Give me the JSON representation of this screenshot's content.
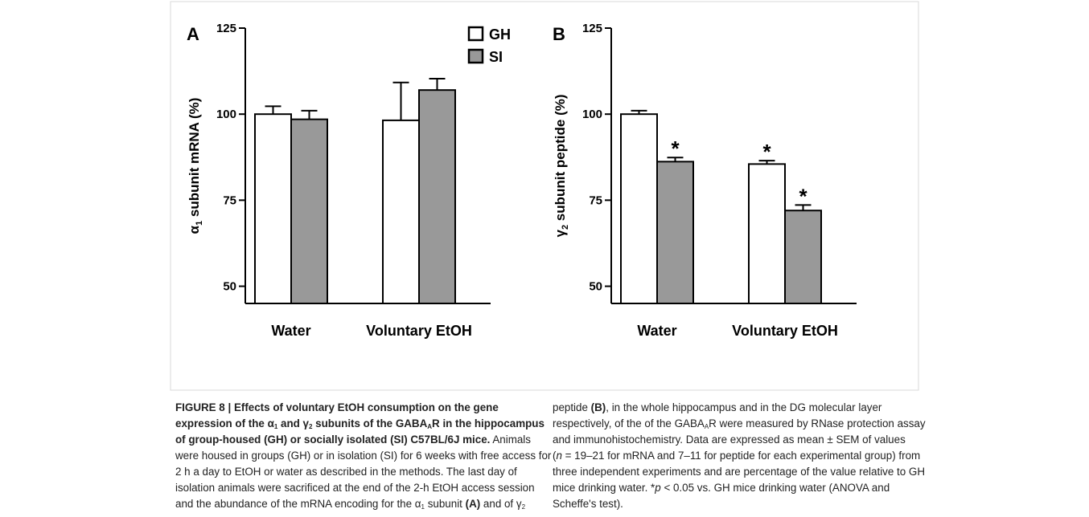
{
  "chart_data": [
    {
      "type": "bar",
      "panel_label": "A",
      "ylabel": [
        "α",
        "1",
        " subunit mRNA (%)"
      ],
      "categories": [
        "Water",
        "Voluntary EtOH"
      ],
      "series": [
        {
          "name": "GH",
          "color": "#ffffff",
          "values": [
            100,
            98.2
          ],
          "errors": [
            2.3,
            11
          ]
        },
        {
          "name": "SI",
          "color": "#999999",
          "values": [
            98.5,
            107
          ],
          "errors": [
            2.5,
            3.3
          ]
        }
      ],
      "ylim": [
        45,
        125
      ],
      "yticks": [
        50,
        75,
        100,
        125
      ],
      "legend": true
    },
    {
      "type": "bar",
      "panel_label": "B",
      "ylabel": [
        "γ",
        "2",
        " subunit peptide (%)"
      ],
      "categories": [
        "Water",
        "Voluntary EtOH"
      ],
      "series": [
        {
          "name": "GH",
          "color": "#ffffff",
          "values": [
            100,
            85.5
          ],
          "errors": [
            1,
            1
          ],
          "markers": [
            null,
            "*"
          ]
        },
        {
          "name": "SI",
          "color": "#999999",
          "values": [
            86.2,
            72
          ],
          "errors": [
            1.2,
            1.6
          ],
          "markers": [
            "*",
            "*"
          ]
        }
      ],
      "ylim": [
        45,
        125
      ],
      "yticks": [
        50,
        75,
        100,
        125
      ],
      "legend": false
    }
  ],
  "caption": {
    "left": [
      [
        "FIGURE 8 | Effects of voluntary EtOH consumption on the gene"
      ],
      [
        "expression of the ",
        "α",
        "1",
        " and ",
        "γ",
        "2",
        " subunits of the GABA",
        "A",
        "R in the hippocampus"
      ],
      [
        "of group-housed (GH) or socially isolated (SI) C57BL/6J mice.",
        " Animals"
      ],
      [
        "were housed in groups (GH) or in isolation (SI) for 6 weeks with free access for"
      ],
      [
        "2 h a day to EtOH or water as described in the methods. The last day of"
      ],
      [
        "isolation animals were sacrificed at the end of the 2-h EtOH access session"
      ],
      [
        "and the abundance of the mRNA encoding for the ",
        "α",
        "1",
        " subunit ",
        "(A)",
        " and of ",
        "γ",
        "2"
      ]
    ],
    "right": [
      [
        "peptide ",
        "(B)",
        ", in the whole hippocampus and in the DG molecular layer"
      ],
      [
        "respectively, of the of the GABA",
        "A",
        "R were measured by RNase protection assay"
      ],
      [
        "and immunohistochemistry. Data are expressed as mean ± SEM of values"
      ],
      [
        "(",
        "n",
        " = 19–21 for mRNA and 7–11 for peptide for each experimental group) from"
      ],
      [
        "three independent experiments and are percentage of the value relative to GH"
      ],
      [
        "mice drinking water. *",
        "p",
        " < 0.05 vs. GH mice drinking water (ANOVA and"
      ],
      [
        "Scheffe's test)."
      ]
    ]
  }
}
